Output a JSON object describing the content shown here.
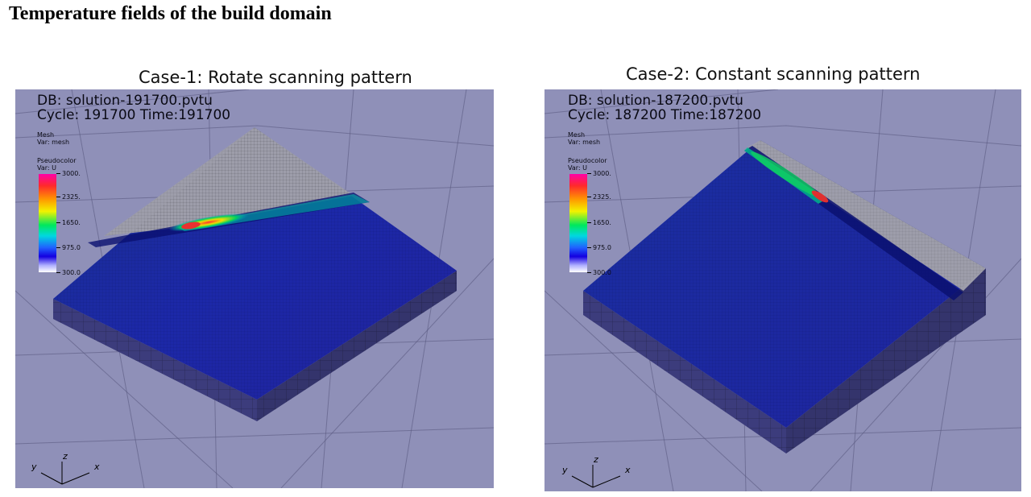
{
  "title": "Temperature fields of the build domain",
  "panels": [
    {
      "caption": "Case-1: Rotate scanning pattern",
      "db_label": "DB: solution-191700.pvtu",
      "cycle_label": "Cycle: 191700   Time:191700",
      "mesh_legend": {
        "title": "Mesh",
        "var": "Var: mesh"
      },
      "pseudocolor": {
        "title": "Pseudocolor",
        "var": "Var: U",
        "ticks": [
          "3000.",
          "2325.",
          "1650.",
          "975.0",
          "300.0"
        ]
      },
      "axes": {
        "x": "x",
        "y": "y",
        "z": "z"
      }
    },
    {
      "caption": "Case-2: Constant scanning pattern",
      "db_label": "DB: solution-187200.pvtu",
      "cycle_label": "Cycle: 187200   Time:187200",
      "mesh_legend": {
        "title": "Mesh",
        "var": "Var: mesh"
      },
      "pseudocolor": {
        "title": "Pseudocolor",
        "var": "Var: U",
        "ticks": [
          "3000.",
          "2325.",
          "1650.",
          "975.0",
          "300.0"
        ]
      },
      "axes": {
        "x": "x",
        "y": "y",
        "z": "z"
      }
    }
  ],
  "colors": {
    "background": "#8f90b8",
    "top_surface": "#1e2aa0",
    "unmelted_powder": "#9a9aa6",
    "side_wall": "#3a3a7a",
    "melt_pool": "#e03030"
  }
}
